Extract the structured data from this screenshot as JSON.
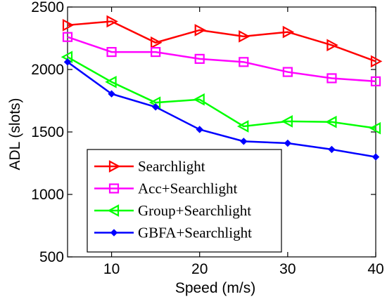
{
  "chart_data": {
    "type": "line",
    "title": "",
    "xlabel": "Speed (m/s)",
    "ylabel": "ADL (slots)",
    "xlim": [
      5,
      40
    ],
    "ylim": [
      500,
      2500
    ],
    "xticks": [
      10,
      20,
      30,
      40
    ],
    "yticks": [
      500,
      1000,
      1500,
      2000,
      2500
    ],
    "grid": false,
    "legend_position": "bottom-left",
    "x": [
      5,
      10,
      15,
      20,
      25,
      30,
      35,
      40
    ],
    "series": [
      {
        "name": "Searchlight",
        "color": "#ff0000",
        "marker": "triangle-right",
        "values": [
          2355,
          2385,
          2215,
          2315,
          2265,
          2300,
          2195,
          2065
        ]
      },
      {
        "name": "Acc+Searchlight",
        "color": "#ff00ff",
        "marker": "square",
        "values": [
          2260,
          2140,
          2140,
          2085,
          2060,
          1980,
          1930,
          1905
        ]
      },
      {
        "name": "Group+Searchlight",
        "color": "#00ff00",
        "marker": "triangle-left",
        "values": [
          2100,
          1900,
          1735,
          1760,
          1545,
          1585,
          1580,
          1530
        ]
      },
      {
        "name": "GBFA+Searchlight",
        "color": "#0000ff",
        "marker": "diamond",
        "values": [
          2060,
          1805,
          1700,
          1520,
          1425,
          1410,
          1360,
          1300
        ]
      }
    ]
  }
}
